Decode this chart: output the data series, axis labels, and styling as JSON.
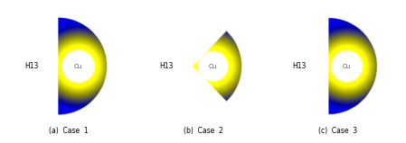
{
  "cases": [
    "(a)  Case  1",
    "(b)  Case  2",
    "(c)  Case  3"
  ],
  "h13_label": "H13",
  "cu_label": "Cu",
  "bg_color": "#ffffff",
  "figsize": [
    4.49,
    1.59
  ],
  "dpi": 100,
  "case_params": [
    {
      "r_outer": 0.72,
      "flat_left": true,
      "taper": false,
      "taper_k": 0.0,
      "hx": 0.3,
      "hy": 0.0,
      "hr": 0.22,
      "gcx": 0.3,
      "gcy": 0.0,
      "xlim": [
        -0.55,
        0.85
      ],
      "ylim": [
        -0.82,
        0.82
      ]
    },
    {
      "r_outer": 0.72,
      "flat_left": false,
      "taper": true,
      "taper_k": 1.05,
      "hx": 0.3,
      "hy": 0.0,
      "hr": 0.2,
      "gcx": 0.3,
      "gcy": 0.0,
      "xlim": [
        -0.55,
        0.85
      ],
      "ylim": [
        -0.82,
        0.82
      ]
    },
    {
      "r_outer": 0.68,
      "flat_left": true,
      "taper": false,
      "taper_k": 0.0,
      "hx": 0.26,
      "hy": 0.0,
      "hr": 0.2,
      "gcx": 0.26,
      "gcy": 0.0,
      "xlim": [
        -0.55,
        0.82
      ],
      "ylim": [
        -0.78,
        0.78
      ]
    }
  ]
}
